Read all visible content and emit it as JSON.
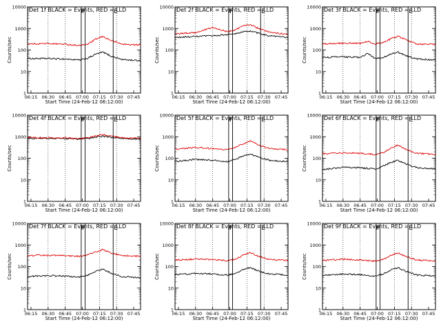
{
  "colors": {
    "events": "#000000",
    "lld": "#e00000",
    "axes": "#000000",
    "background": "#ffffff"
  },
  "shared": {
    "xlabel": "Start Time (24-Feb-12 06:12:00)",
    "ylabel": "Counts/sec",
    "xticks": [
      "06:15",
      "06:30",
      "06:45",
      "07:00",
      "07:15",
      "07:30",
      "07:45"
    ],
    "yticks": [
      "1",
      "10",
      "100",
      "1000",
      "10000"
    ],
    "marker_labels": [
      "F",
      "F",
      "E"
    ]
  },
  "chart_data": [
    {
      "type": "line",
      "title": "Det 1f BLACK = Events, RED = LLD",
      "xlabel": "Start Time (24-Feb-12 06:12:00)",
      "ylabel": "Counts/sec",
      "y_scale": "log",
      "ylim": [
        1,
        10000
      ],
      "xlim": [
        "06:12",
        "07:51"
      ],
      "grid": "dotted vertical",
      "series": [
        {
          "name": "Events",
          "color": "#000000",
          "x": [
            "06:12",
            "06:30",
            "06:45",
            "06:58",
            "07:05",
            "07:12",
            "07:18",
            "07:25",
            "07:35",
            "07:51"
          ],
          "y": [
            40,
            40,
            38,
            34,
            42,
            65,
            80,
            52,
            36,
            32
          ]
        },
        {
          "name": "LLD",
          "color": "#e00000",
          "x": [
            "06:12",
            "06:30",
            "06:45",
            "06:58",
            "07:05",
            "07:12",
            "07:18",
            "07:25",
            "07:35",
            "07:51"
          ],
          "y": [
            190,
            200,
            185,
            160,
            190,
            320,
            420,
            280,
            185,
            170
          ]
        }
      ]
    },
    {
      "type": "line",
      "title": "Det 2f BLACK = Events, RED = LLD",
      "xlabel": "Start Time (24-Feb-12 06:12:00)",
      "ylabel": "Counts/sec",
      "y_scale": "log",
      "ylim": [
        1,
        10000
      ],
      "xlim": [
        "06:12",
        "07:51"
      ],
      "grid": "dotted vertical",
      "series": [
        {
          "name": "Events",
          "color": "#000000",
          "x": [
            "06:12",
            "06:30",
            "06:45",
            "06:58",
            "07:05",
            "07:12",
            "07:18",
            "07:25",
            "07:35",
            "07:51"
          ],
          "y": [
            380,
            420,
            460,
            520,
            560,
            700,
            760,
            600,
            450,
            380
          ]
        },
        {
          "name": "LLD",
          "color": "#e00000",
          "x": [
            "06:12",
            "06:30",
            "06:45",
            "06:58",
            "07:05",
            "07:12",
            "07:18",
            "07:25",
            "07:35",
            "07:51"
          ],
          "y": [
            550,
            650,
            1100,
            700,
            850,
            1400,
            1500,
            1000,
            650,
            550
          ]
        }
      ]
    },
    {
      "type": "line",
      "title": "Det 3f BLACK = Events, RED = LLD",
      "xlabel": "Start Time (24-Feb-12 06:12:00)",
      "ylabel": "Counts/sec",
      "y_scale": "log",
      "ylim": [
        1,
        10000
      ],
      "xlim": [
        "06:12",
        "07:51"
      ],
      "grid": "dotted vertical",
      "series": [
        {
          "name": "Events",
          "color": "#000000",
          "x": [
            "06:12",
            "06:30",
            "06:45",
            "06:52",
            "06:58",
            "07:05",
            "07:12",
            "07:18",
            "07:25",
            "07:35",
            "07:51"
          ],
          "y": [
            45,
            48,
            45,
            70,
            40,
            45,
            65,
            80,
            55,
            38,
            35
          ]
        },
        {
          "name": "LLD",
          "color": "#e00000",
          "x": [
            "06:12",
            "06:30",
            "06:45",
            "06:52",
            "06:58",
            "07:05",
            "07:12",
            "07:18",
            "07:25",
            "07:35",
            "07:51"
          ],
          "y": [
            190,
            210,
            200,
            260,
            190,
            220,
            330,
            430,
            300,
            190,
            180
          ]
        }
      ]
    },
    {
      "type": "line",
      "title": "Det 4f BLACK = Events, RED = LLD",
      "xlabel": "Start Time (24-Feb-12 06:12:00)",
      "ylabel": "Counts/sec",
      "y_scale": "log",
      "ylim": [
        1,
        10000
      ],
      "xlim": [
        "06:12",
        "07:51"
      ],
      "grid": "dotted vertical",
      "series": [
        {
          "name": "Events",
          "color": "#000000",
          "x": [
            "06:12",
            "06:30",
            "06:45",
            "06:58",
            "07:05",
            "07:12",
            "07:18",
            "07:25",
            "07:35",
            "07:51"
          ],
          "y": [
            850,
            850,
            820,
            780,
            820,
            960,
            1050,
            950,
            820,
            780
          ]
        },
        {
          "name": "LLD",
          "color": "#e00000",
          "x": [
            "06:12",
            "06:30",
            "06:45",
            "06:58",
            "07:05",
            "07:12",
            "07:18",
            "07:25",
            "07:35",
            "07:51"
          ],
          "y": [
            900,
            900,
            880,
            820,
            880,
            1100,
            1250,
            1050,
            880,
            830
          ]
        }
      ]
    },
    {
      "type": "line",
      "title": "Det 5f BLACK = Events, RED = LLD",
      "xlabel": "Start Time (24-Feb-12 06:12:00)",
      "ylabel": "Counts/sec",
      "y_scale": "log",
      "ylim": [
        1,
        10000
      ],
      "xlim": [
        "06:12",
        "07:51"
      ],
      "grid": "dotted vertical",
      "series": [
        {
          "name": "Events",
          "color": "#000000",
          "x": [
            "06:12",
            "06:30",
            "06:45",
            "06:58",
            "07:05",
            "07:12",
            "07:18",
            "07:25",
            "07:35",
            "07:51"
          ],
          "y": [
            70,
            90,
            80,
            70,
            90,
            130,
            160,
            110,
            80,
            70
          ]
        },
        {
          "name": "LLD",
          "color": "#e00000",
          "x": [
            "06:12",
            "06:30",
            "06:45",
            "06:58",
            "07:05",
            "07:12",
            "07:18",
            "07:25",
            "07:35",
            "07:51"
          ],
          "y": [
            260,
            320,
            280,
            250,
            320,
            480,
            620,
            420,
            280,
            250
          ]
        }
      ]
    },
    {
      "type": "line",
      "title": "Det 6f BLACK = Events, RED = LLD",
      "xlabel": "Start Time (24-Feb-12 06:12:00)",
      "ylabel": "Counts/sec",
      "y_scale": "log",
      "ylim": [
        1,
        10000
      ],
      "xlim": [
        "06:12",
        "07:51"
      ],
      "grid": "dotted vertical",
      "series": [
        {
          "name": "Events",
          "color": "#000000",
          "x": [
            "06:12",
            "06:30",
            "06:45",
            "06:58",
            "07:05",
            "07:12",
            "07:18",
            "07:25",
            "07:35",
            "07:51"
          ],
          "y": [
            30,
            38,
            36,
            32,
            42,
            65,
            80,
            55,
            36,
            32
          ]
        },
        {
          "name": "LLD",
          "color": "#e00000",
          "x": [
            "06:12",
            "06:30",
            "06:45",
            "06:58",
            "07:05",
            "07:12",
            "07:18",
            "07:25",
            "07:35",
            "07:51"
          ],
          "y": [
            160,
            180,
            170,
            150,
            180,
            300,
            400,
            260,
            170,
            150
          ]
        }
      ]
    },
    {
      "type": "line",
      "title": "Det 7f BLACK = Events, RED = LLD",
      "xlabel": "Start Time (24-Feb-12 06:12:00)",
      "ylabel": "Counts/sec",
      "y_scale": "log",
      "ylim": [
        1,
        10000
      ],
      "xlim": [
        "06:12",
        "07:51"
      ],
      "grid": "dotted vertical",
      "series": [
        {
          "name": "Events",
          "color": "#000000",
          "x": [
            "06:12",
            "06:30",
            "06:45",
            "06:58",
            "07:05",
            "07:12",
            "07:18",
            "07:25",
            "07:35",
            "07:51"
          ],
          "y": [
            35,
            38,
            36,
            32,
            40,
            60,
            75,
            50,
            34,
            30
          ]
        },
        {
          "name": "LLD",
          "color": "#e00000",
          "x": [
            "06:12",
            "06:30",
            "06:45",
            "06:58",
            "07:05",
            "07:12",
            "07:18",
            "07:25",
            "07:35",
            "07:51"
          ],
          "y": [
            320,
            330,
            320,
            300,
            350,
            480,
            620,
            420,
            320,
            300
          ]
        }
      ]
    },
    {
      "type": "line",
      "title": "Det 8f BLACK = Events, RED = LLD",
      "xlabel": "Start Time (24-Feb-12 06:12:00)",
      "ylabel": "Counts/sec",
      "y_scale": "log",
      "ylim": [
        1,
        10000
      ],
      "xlim": [
        "06:12",
        "07:51"
      ],
      "grid": "dotted vertical",
      "series": [
        {
          "name": "Events",
          "color": "#000000",
          "x": [
            "06:12",
            "06:30",
            "06:45",
            "06:58",
            "07:05",
            "07:12",
            "07:18",
            "07:25",
            "07:35",
            "07:51"
          ],
          "y": [
            42,
            48,
            45,
            40,
            48,
            72,
            90,
            62,
            45,
            40
          ]
        },
        {
          "name": "LLD",
          "color": "#e00000",
          "x": [
            "06:12",
            "06:30",
            "06:45",
            "06:58",
            "07:05",
            "07:12",
            "07:18",
            "07:25",
            "07:35",
            "07:51"
          ],
          "y": [
            200,
            220,
            210,
            185,
            220,
            340,
            440,
            300,
            210,
            190
          ]
        }
      ]
    },
    {
      "type": "line",
      "title": "Det 9f BLACK = Events, RED = LLD",
      "xlabel": "Start Time (24-Feb-12 06:12:00)",
      "ylabel": "Counts/sec",
      "y_scale": "log",
      "ylim": [
        1,
        10000
      ],
      "xlim": [
        "06:12",
        "07:51"
      ],
      "grid": "dotted vertical",
      "series": [
        {
          "name": "Events",
          "color": "#000000",
          "x": [
            "06:12",
            "06:30",
            "06:45",
            "06:58",
            "07:05",
            "07:12",
            "07:18",
            "07:25",
            "07:35",
            "07:51"
          ],
          "y": [
            38,
            45,
            42,
            36,
            45,
            70,
            88,
            60,
            40,
            36
          ]
        },
        {
          "name": "LLD",
          "color": "#e00000",
          "x": [
            "06:12",
            "06:30",
            "06:45",
            "06:58",
            "07:05",
            "07:12",
            "07:18",
            "07:25",
            "07:35",
            "07:51"
          ],
          "y": [
            190,
            220,
            200,
            180,
            210,
            330,
            420,
            290,
            200,
            185
          ]
        }
      ]
    }
  ]
}
